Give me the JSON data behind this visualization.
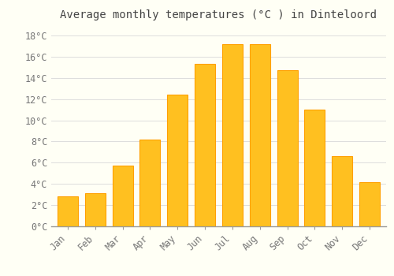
{
  "title": "Average monthly temperatures (°C ) in Dinteloord",
  "months": [
    "Jan",
    "Feb",
    "Mar",
    "Apr",
    "May",
    "Jun",
    "Jul",
    "Aug",
    "Sep",
    "Oct",
    "Nov",
    "Dec"
  ],
  "temperatures": [
    2.8,
    3.1,
    5.7,
    8.2,
    12.4,
    15.3,
    17.2,
    17.2,
    14.7,
    11.0,
    6.6,
    4.2
  ],
  "bar_color": "#FFC020",
  "bar_edge_color": "#FFA000",
  "background_color": "#FFFFF5",
  "grid_color": "#DDDDDD",
  "ylim": [
    0,
    19
  ],
  "yticks": [
    0,
    2,
    4,
    6,
    8,
    10,
    12,
    14,
    16,
    18
  ],
  "ytick_labels": [
    "0°C",
    "2°C",
    "4°C",
    "6°C",
    "8°C",
    "10°C",
    "12°C",
    "14°C",
    "16°C",
    "18°C"
  ],
  "title_fontsize": 10,
  "tick_fontsize": 8.5,
  "title_color": "#444444",
  "tick_color": "#777777",
  "font_family": "monospace",
  "bar_width": 0.75
}
